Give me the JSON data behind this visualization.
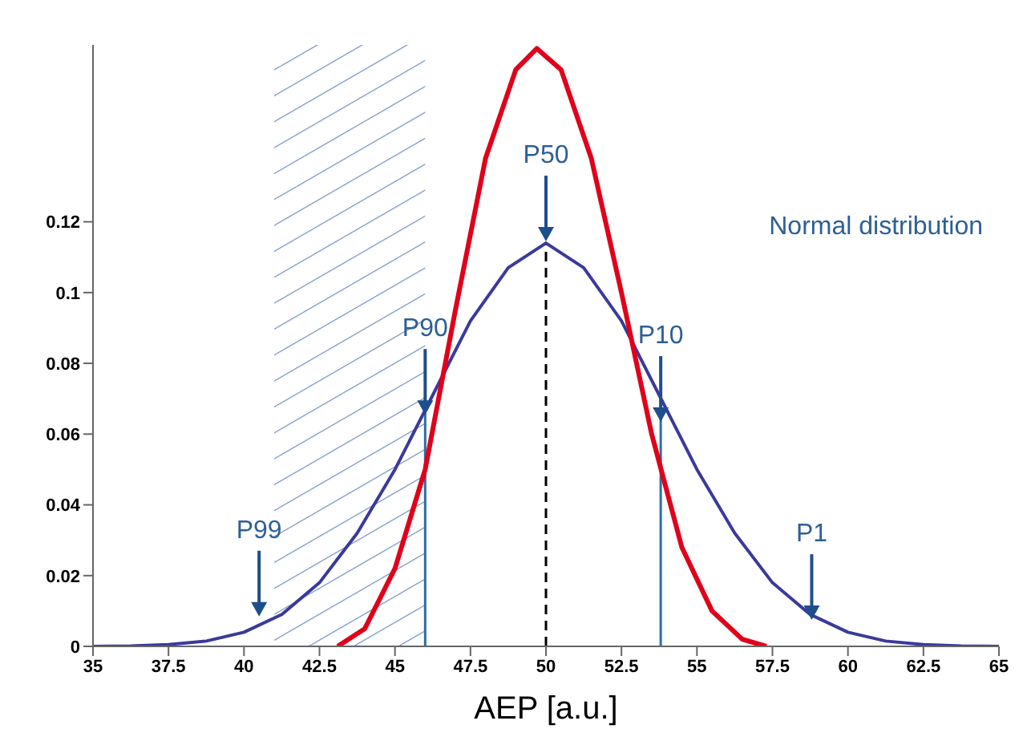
{
  "chart_data": {
    "type": "line",
    "xlabel": "AEP [a.u.]",
    "series": [
      {
        "color": "#3a3a9c",
        "x": [
          35,
          36.25,
          37.5,
          38.75,
          40,
          41.25,
          42.5,
          43.75,
          45,
          46.25,
          47.5,
          48.75,
          50,
          51.25,
          52.5,
          53.75,
          55,
          56.25,
          57.5,
          58.75,
          60,
          61.25,
          62.5,
          63.75,
          65
        ],
        "values": [
          0,
          0.0001,
          0.0005,
          0.0015,
          0.004,
          0.009,
          0.018,
          0.032,
          0.05,
          0.071,
          0.092,
          0.107,
          0.114,
          0.107,
          0.092,
          0.071,
          0.05,
          0.032,
          0.018,
          0.009,
          0.004,
          0.0015,
          0.0005,
          0.0001,
          0
        ]
      },
      {
        "color": "#e0001a",
        "x": [
          43.1,
          44,
          45,
          46,
          47,
          48,
          49,
          49.7,
          50.5,
          51.5,
          52.5,
          53.5,
          54.5,
          55.5,
          56.5,
          57.3
        ],
        "values": [
          0,
          0.005,
          0.022,
          0.05,
          0.095,
          0.138,
          0.163,
          0.169,
          0.163,
          0.138,
          0.1,
          0.06,
          0.028,
          0.01,
          0.002,
          0
        ]
      }
    ],
    "xlim": [
      35,
      65
    ],
    "xticks": [
      35,
      37.5,
      40,
      42.5,
      45,
      47.5,
      50,
      52.5,
      55,
      57.5,
      60,
      62.5,
      65
    ],
    "ylim": [
      0,
      0.17
    ],
    "yticks": [
      0,
      0.02,
      0.04,
      0.06,
      0.08,
      0.1,
      0.12
    ],
    "marker": "none",
    "line_style": "solid",
    "ref_lines": [
      {
        "axis": "x",
        "value": 50,
        "color": "#000000",
        "line_style": "dashed"
      },
      {
        "axis": "x",
        "value": 46,
        "color": "#2e6da4",
        "line_style": "solid"
      },
      {
        "axis": "x",
        "value": 53.8,
        "color": "#2e6da4",
        "line_style": "solid"
      }
    ],
    "bands": [
      {
        "axis": "x",
        "from": 41,
        "to": 46,
        "color": "#6f8fc0"
      }
    ],
    "annotations": [
      "Normal distribution",
      {
        "text": "P50",
        "x": 50,
        "y": 0.114
      },
      {
        "text": "P90",
        "x": 46,
        "y": 0.065
      },
      {
        "text": "P10",
        "x": 53.8,
        "y": 0.063
      },
      {
        "text": "P99",
        "x": 40.5,
        "y": 0.008
      },
      {
        "text": "P1",
        "x": 58.8,
        "y": 0.007
      }
    ]
  }
}
